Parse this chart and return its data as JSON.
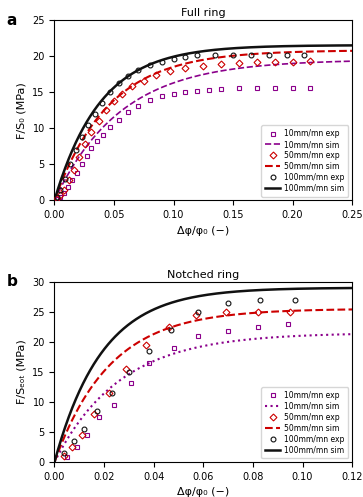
{
  "panel_a": {
    "title": "Full ring",
    "label": "a",
    "xlabel": "Δφ/φ₀ (−)",
    "ylabel": "F/S₀ (MPa)",
    "xlim": [
      0,
      0.25
    ],
    "ylim": [
      0,
      25
    ],
    "xticks": [
      0,
      0.05,
      0.1,
      0.15,
      0.2,
      0.25
    ],
    "yticks": [
      0,
      5,
      10,
      15,
      20,
      25
    ],
    "exp_10_x": [
      0.002,
      0.005,
      0.008,
      0.011,
      0.015,
      0.019,
      0.023,
      0.027,
      0.031,
      0.036,
      0.041,
      0.047,
      0.054,
      0.062,
      0.07,
      0.08,
      0.09,
      0.1,
      0.11,
      0.12,
      0.13,
      0.14,
      0.155,
      0.17,
      0.185,
      0.2,
      0.215
    ],
    "exp_10_y": [
      0.2,
      0.5,
      1.0,
      1.8,
      2.8,
      3.8,
      5.0,
      6.2,
      7.2,
      8.2,
      9.1,
      10.2,
      11.2,
      12.2,
      13.1,
      13.9,
      14.4,
      14.7,
      15.0,
      15.2,
      15.3,
      15.4,
      15.5,
      15.5,
      15.5,
      15.5,
      15.5
    ],
    "exp_50_x": [
      0.002,
      0.005,
      0.008,
      0.012,
      0.016,
      0.021,
      0.026,
      0.031,
      0.037,
      0.043,
      0.05,
      0.057,
      0.065,
      0.075,
      0.085,
      0.097,
      0.11,
      0.125,
      0.14,
      0.155,
      0.17,
      0.185,
      0.2,
      0.215
    ],
    "exp_50_y": [
      0.3,
      0.8,
      1.5,
      2.8,
      4.2,
      6.0,
      7.8,
      9.5,
      11.0,
      12.5,
      13.8,
      14.8,
      15.8,
      16.6,
      17.3,
      17.9,
      18.3,
      18.6,
      18.9,
      19.0,
      19.1,
      19.2,
      19.2,
      19.3
    ],
    "exp_100_x": [
      0.002,
      0.005,
      0.009,
      0.013,
      0.018,
      0.023,
      0.028,
      0.034,
      0.04,
      0.047,
      0.054,
      0.062,
      0.07,
      0.08,
      0.09,
      0.1,
      0.11,
      0.12,
      0.135,
      0.15,
      0.165,
      0.18,
      0.195,
      0.21
    ],
    "exp_100_y": [
      0.5,
      1.5,
      3.0,
      5.0,
      7.0,
      8.8,
      10.5,
      12.0,
      13.5,
      15.0,
      16.2,
      17.2,
      18.0,
      18.7,
      19.2,
      19.6,
      19.9,
      20.1,
      20.2,
      20.2,
      20.2,
      20.2,
      20.2,
      20.2
    ],
    "sim_10_A": 19.5,
    "sim_10_k": 18.0,
    "sim_50_A": 20.8,
    "sim_50_k": 22.0,
    "sim_100_A": 21.5,
    "sim_100_k": 26.0
  },
  "panel_b": {
    "title": "Notched ring",
    "label": "b",
    "xlabel": "Δφ/φ₀ (−)",
    "ylabel": "F/Sₑₒₜ (MPa)",
    "xlim": [
      0,
      0.12
    ],
    "ylim": [
      0,
      30
    ],
    "xticks": [
      0,
      0.02,
      0.04,
      0.06,
      0.08,
      0.1,
      0.12
    ],
    "yticks": [
      0,
      5,
      10,
      15,
      20,
      25,
      30
    ],
    "exp_10_x": [
      0.005,
      0.009,
      0.013,
      0.018,
      0.024,
      0.031,
      0.038,
      0.048,
      0.058,
      0.07,
      0.082,
      0.094
    ],
    "exp_10_y": [
      0.8,
      2.5,
      4.5,
      7.5,
      9.5,
      13.2,
      16.5,
      19.0,
      21.0,
      21.8,
      22.5,
      23.0
    ],
    "exp_50_x": [
      0.004,
      0.007,
      0.011,
      0.016,
      0.022,
      0.029,
      0.037,
      0.046,
      0.057,
      0.069,
      0.082,
      0.095
    ],
    "exp_50_y": [
      1.0,
      2.5,
      4.5,
      8.0,
      11.5,
      15.5,
      19.5,
      22.5,
      24.5,
      25.0,
      25.0,
      25.0
    ],
    "exp_100_x": [
      0.004,
      0.008,
      0.012,
      0.017,
      0.023,
      0.03,
      0.038,
      0.047,
      0.058,
      0.07,
      0.083,
      0.097
    ],
    "exp_100_y": [
      1.5,
      3.5,
      5.5,
      8.5,
      11.5,
      15.0,
      18.5,
      22.0,
      25.0,
      26.5,
      27.0,
      27.0
    ],
    "sim_10_A": 21.5,
    "sim_10_k": 38.0,
    "sim_50_A": 25.5,
    "sim_50_k": 45.0,
    "sim_100_A": 29.0,
    "sim_100_k": 52.0
  },
  "color_10": "#8B008B",
  "color_50": "#CC0000",
  "color_100": "#111111",
  "legend_entries": [
    "10mm/mn exp",
    "10mm/mn sim",
    "50mm/mn exp",
    "50mm/mn sim",
    "100mm/mn exp",
    "100mm/mn sim"
  ]
}
